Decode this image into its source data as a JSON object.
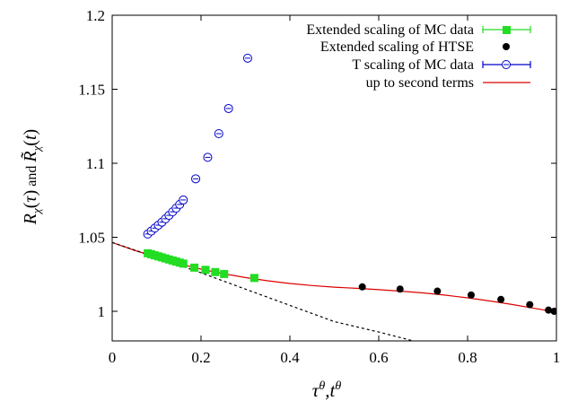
{
  "chart_data": {
    "type": "scatter",
    "xlabel": "τ^θ, t^θ",
    "ylabel": "R_χ(τ) and R̃_χ(t)",
    "xlim": [
      0,
      1
    ],
    "ylim": [
      0.98,
      1.2
    ],
    "xticks": [
      "0",
      "0.2",
      "0.4",
      "0.6",
      "0.8",
      "1"
    ],
    "yticks": [
      "1",
      "1.05",
      "1.1",
      "1.15",
      "1.2"
    ],
    "xtick_values": [
      0,
      0.2,
      0.4,
      0.6,
      0.8,
      1.0
    ],
    "ytick_values": [
      1.0,
      1.05,
      1.1,
      1.15,
      1.2
    ],
    "grid": false,
    "legend_position": "top-right",
    "series": [
      {
        "name": "Extended scaling of MC data",
        "marker": "filled-square",
        "color": "#22dd22",
        "line_color": "#22dd22",
        "points": [
          [
            0.08,
            1.0392
          ],
          [
            0.088,
            1.0385
          ],
          [
            0.096,
            1.0378
          ],
          [
            0.104,
            1.0371
          ],
          [
            0.112,
            1.0364
          ],
          [
            0.12,
            1.0357
          ],
          [
            0.128,
            1.035
          ],
          [
            0.136,
            1.0343
          ],
          [
            0.144,
            1.0336
          ],
          [
            0.152,
            1.0329
          ],
          [
            0.16,
            1.0322
          ],
          [
            0.185,
            1.0295
          ],
          [
            0.21,
            1.028
          ],
          [
            0.232,
            1.0265
          ],
          [
            0.252,
            1.0252
          ],
          [
            0.32,
            1.0225
          ]
        ]
      },
      {
        "name": "Extended scaling of HTSE",
        "marker": "filled-circle",
        "color": "#000000",
        "points": [
          [
            0.563,
            1.0165
          ],
          [
            0.648,
            1.015
          ],
          [
            0.732,
            1.0136
          ],
          [
            0.808,
            1.011
          ],
          [
            0.875,
            1.008
          ],
          [
            0.94,
            1.0045
          ],
          [
            0.982,
            1.0008
          ],
          [
            0.995,
            1.0
          ]
        ]
      },
      {
        "name": "T scaling of MC data",
        "marker": "open-circle",
        "color": "#0000cc",
        "line_color": "#0000cc",
        "points": [
          [
            0.08,
            1.0522
          ],
          [
            0.088,
            1.0542
          ],
          [
            0.096,
            1.0562
          ],
          [
            0.104,
            1.0582
          ],
          [
            0.112,
            1.0602
          ],
          [
            0.12,
            1.0625
          ],
          [
            0.128,
            1.0648
          ],
          [
            0.136,
            1.0672
          ],
          [
            0.144,
            1.0697
          ],
          [
            0.152,
            1.0722
          ],
          [
            0.16,
            1.0752
          ],
          [
            0.188,
            1.0895
          ],
          [
            0.215,
            1.104
          ],
          [
            0.24,
            1.12
          ],
          [
            0.262,
            1.137
          ],
          [
            0.305,
            1.171
          ]
        ]
      }
    ],
    "curves": [
      {
        "name": "up to second terms",
        "style": "solid",
        "color": "#dd0000",
        "x": [
          0,
          0.05,
          0.1,
          0.15,
          0.2,
          0.25,
          0.3,
          0.35,
          0.4,
          0.45,
          0.5,
          0.55,
          0.6,
          0.65,
          0.7,
          0.75,
          0.8,
          0.85,
          0.9,
          0.95,
          1.0
        ],
        "y": [
          1.0465,
          1.0412,
          1.0364,
          1.0322,
          1.0285,
          1.0254,
          1.0228,
          1.0206,
          1.0188,
          1.0174,
          1.0163,
          1.0155,
          1.0146,
          1.0136,
          1.0124,
          1.0109,
          1.0091,
          1.007,
          1.0046,
          1.002,
          0.9995
        ]
      },
      {
        "style": "dotted",
        "color": "#000000",
        "x": [
          0,
          0.1,
          0.2,
          0.3,
          0.4,
          0.5,
          0.6,
          0.69
        ],
        "y": [
          1.0465,
          1.0364,
          1.026,
          1.015,
          1.004,
          0.993,
          0.986,
          0.979
        ]
      }
    ]
  },
  "labels": {
    "x_axis_title": "τ^θ,t^θ",
    "y_axis_title": "R_χ(τ) and R̃_χ(t)"
  },
  "legend": [
    {
      "label": "Extended scaling of MC data",
      "marker": "filled-square",
      "color": "#22dd22"
    },
    {
      "label": "Extended scaling of HTSE",
      "marker": "filled-circle",
      "color": "#000000"
    },
    {
      "label": "T scaling of MC data",
      "marker": "open-circle",
      "color": "#0000cc"
    },
    {
      "label": "up to second terms",
      "marker": "line",
      "color": "#dd0000"
    }
  ]
}
